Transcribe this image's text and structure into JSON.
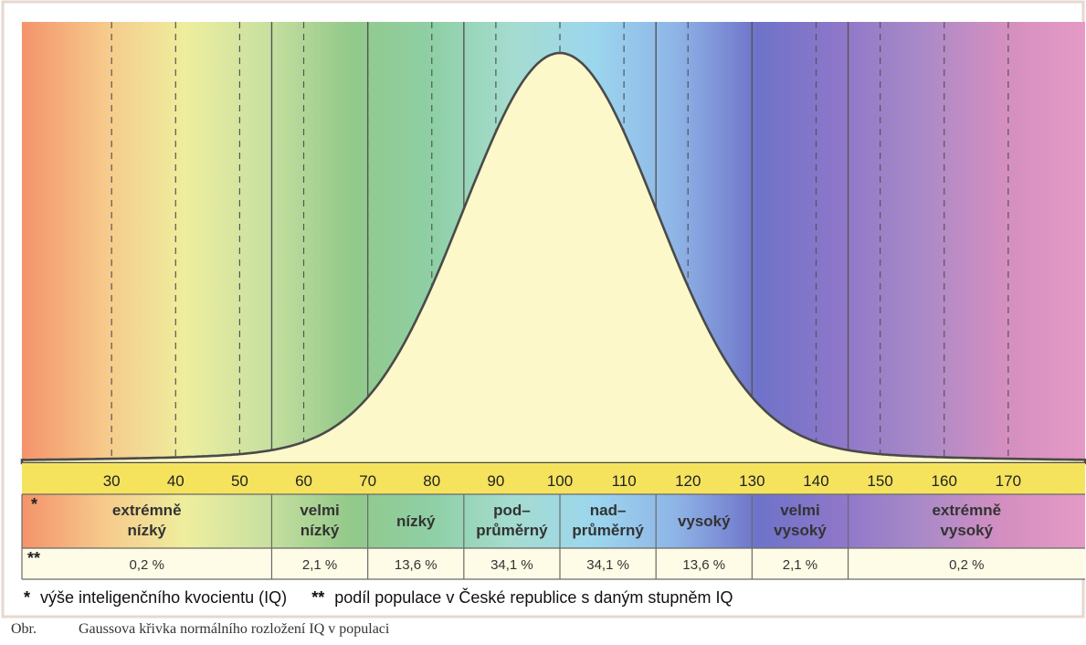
{
  "chart_data": {
    "type": "area",
    "title": "",
    "xlabel": "",
    "ylabel": "",
    "xlim": [
      16,
      182
    ],
    "distribution": {
      "mean": 100,
      "sd": 15
    },
    "x_ticks": [
      30,
      40,
      50,
      60,
      70,
      80,
      90,
      100,
      110,
      120,
      130,
      140,
      150,
      160,
      170
    ],
    "band_boundaries": [
      55,
      70,
      85,
      115,
      130,
      145
    ],
    "bands": [
      {
        "from": 16,
        "to": 55,
        "label": [
          "extrémně",
          "nízký"
        ],
        "share": "0,2 %"
      },
      {
        "from": 55,
        "to": 70,
        "label": [
          "velmi",
          "nízký"
        ],
        "share": "2,1 %"
      },
      {
        "from": 70,
        "to": 85,
        "label": [
          "nízký"
        ],
        "share": "13,6 %"
      },
      {
        "from": 85,
        "to": 100,
        "label": [
          "pod–",
          "průměrný"
        ],
        "share": "34,1 %"
      },
      {
        "from": 100,
        "to": 115,
        "label": [
          "nad–",
          "průměrný"
        ],
        "share": "34,1 %"
      },
      {
        "from": 115,
        "to": 130,
        "label": [
          "vysoký"
        ],
        "share": "13,6 %"
      },
      {
        "from": 130,
        "to": 145,
        "label": [
          "velmi",
          "vysoký"
        ],
        "share": "2,1 %"
      },
      {
        "from": 145,
        "to": 182,
        "label": [
          "extrémně",
          "vysoký"
        ],
        "share": "0,2 %"
      }
    ],
    "row_markers": {
      "level": "*",
      "share": "**"
    },
    "footnote": {
      "level_marker": "*",
      "level_text": "výše inteligenčního kvocientu (IQ)",
      "share_marker": "**",
      "share_text": "podíl populace v České republice s daným stupněm IQ"
    },
    "colors": {
      "curve_fill": "#fcf8c9",
      "curve_stroke": "#4a4a4a",
      "axis_strip": "#f5e35e",
      "spectrum": [
        "#f4936b",
        "#f6c98b",
        "#eeee9e",
        "#c8e0a0",
        "#93c98a",
        "#8ecfa4",
        "#a5dcd0",
        "#9cd6ee",
        "#8eb4e6",
        "#6e73c9",
        "#8e77c9",
        "#a98ac8",
        "#d48fc0",
        "#e49ac4"
      ]
    }
  },
  "caption": {
    "label": "Obr.",
    "text": "Gaussova křivka normálního rozložení IQ v populaci"
  }
}
